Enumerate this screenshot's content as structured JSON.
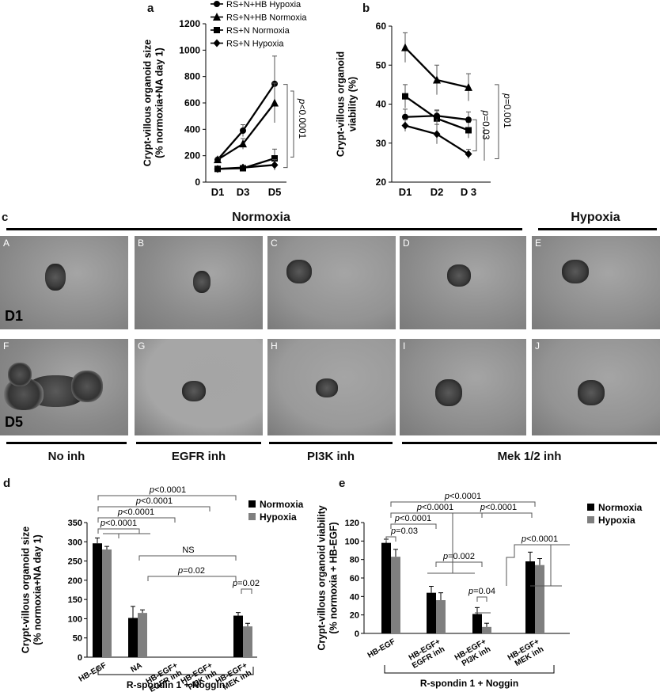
{
  "chart_data": [
    {
      "id": "a",
      "type": "line",
      "panel_label": "a",
      "categories": [
        "D1",
        "D3",
        "D5"
      ],
      "ylabel": "Crypt-villous organoid size\n(% normoxia+NA day 1)",
      "ylim": [
        0,
        1200
      ],
      "yticks": [
        0,
        200,
        400,
        600,
        800,
        1000,
        1200
      ],
      "series": [
        {
          "name": "RS+N+HB Hypoxia",
          "marker": "circle",
          "values": [
            170,
            390,
            745
          ],
          "err": [
            15,
            45,
            210
          ]
        },
        {
          "name": "RS+N+HB Normoxia",
          "marker": "triangle",
          "values": [
            170,
            290,
            600
          ],
          "err": [
            15,
            40,
            150
          ]
        },
        {
          "name": "RS+N Normoxia",
          "marker": "square",
          "values": [
            100,
            105,
            180
          ],
          "err": [
            10,
            15,
            70
          ]
        },
        {
          "name": "RS+N Hypoxia",
          "marker": "diamond",
          "values": [
            100,
            110,
            130
          ],
          "err": [
            10,
            15,
            40
          ]
        }
      ],
      "annotation": "p<0.0001"
    },
    {
      "id": "b",
      "type": "line",
      "panel_label": "b",
      "categories": [
        "D1",
        "D2",
        "D 3"
      ],
      "ylabel": "Crypt-villous organoid\nviability (%)",
      "ylim": [
        20,
        60
      ],
      "yticks": [
        20,
        30,
        40,
        50,
        60
      ],
      "series": [
        {
          "name": "RS+N+HB Normoxia",
          "marker": "triangle",
          "values": [
            54.5,
            46.2,
            44.3
          ],
          "err": [
            3.8,
            3.8,
            3.5
          ]
        },
        {
          "name": "RS+N Normoxia",
          "marker": "square",
          "values": [
            42,
            36.3,
            33.3
          ],
          "err": [
            3,
            2,
            2
          ]
        },
        {
          "name": "RS+N+HB Hypoxia",
          "marker": "circle",
          "values": [
            36.7,
            37,
            36
          ],
          "err": [
            2,
            1.5,
            2
          ]
        },
        {
          "name": "RS+N Hypoxia",
          "marker": "diamond",
          "values": [
            34.5,
            32.3,
            27.2
          ],
          "err": [
            1.5,
            2.5,
            1.2
          ]
        }
      ],
      "annotations": [
        "p=0.001",
        "p=0.03"
      ]
    },
    {
      "id": "d",
      "type": "bar",
      "panel_label": "d",
      "categories": [
        "HB-EGF",
        "NA",
        "HB-EGF+ EGFR inh",
        "HB-EGF+ PI3K inh",
        "HB-EGF+ MEK inh"
      ],
      "series": [
        {
          "name": "Normoxia",
          "color": "#000000",
          "values": [
            296,
            102,
            0,
            0,
            108
          ],
          "err": [
            14,
            30,
            0,
            0,
            8
          ]
        },
        {
          "name": "Hypoxia",
          "color": "#7f7f7f",
          "values": [
            280,
            115,
            0,
            0,
            80
          ],
          "err": [
            8,
            8,
            0,
            0,
            8
          ]
        }
      ],
      "ylabel": "Crypt-villous organoid size\n(% normoxia+NA day 1)",
      "ylim": [
        0,
        350
      ],
      "yticks": [
        0,
        50,
        100,
        150,
        200,
        250,
        300,
        350
      ],
      "xgroup_label": "R-spondin 1 + Noggin",
      "annotations": [
        "p<0.0001",
        "p<0.0001",
        "p<0.0001",
        "p<0.0001",
        "NS",
        "p=0.02",
        "p=0.02"
      ]
    },
    {
      "id": "e",
      "type": "bar",
      "panel_label": "e",
      "categories": [
        "HB-EGF",
        "HB-EGF+ EGFR inh",
        "HB-EGF+ PI3K inh",
        "HB-EGF+ MEK inh"
      ],
      "series": [
        {
          "name": "Normoxia",
          "color": "#000000",
          "values": [
            98,
            44,
            21,
            78
          ],
          "err": [
            4,
            7,
            7,
            10
          ]
        },
        {
          "name": "Hypoxia",
          "color": "#7f7f7f",
          "values": [
            83,
            36,
            7,
            74
          ],
          "err": [
            8,
            8,
            4,
            7
          ]
        }
      ],
      "ylabel": "Crypt-villous organoid viability\n(% normoxia + HB-EGF)",
      "ylim": [
        0,
        120
      ],
      "yticks": [
        0,
        20,
        40,
        60,
        80,
        100,
        120
      ],
      "xgroup_label": "R-spondin 1 + Noggin",
      "annotations": [
        "p<0.0001",
        "p<0.0001",
        "p<0.0001",
        "p=0.03",
        "p<0.0001",
        "p=0.002",
        "p=0.04",
        "p<0.0001"
      ]
    }
  ],
  "figure_c": {
    "panel_label": "c",
    "header_normoxia": "Normoxia",
    "header_hypoxia": "Hypoxia",
    "row_labels": [
      "D1",
      "D5"
    ],
    "panels": [
      "A",
      "B",
      "C",
      "D",
      "E",
      "F",
      "G",
      "H",
      "I",
      "J"
    ],
    "column_labels": [
      "No inh",
      "EGFR inh",
      "PI3K inh",
      "Mek 1/2 inh"
    ]
  }
}
